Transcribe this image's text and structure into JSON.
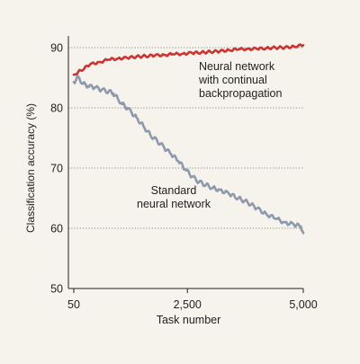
{
  "chart_data": {
    "type": "line",
    "xlabel": "Task number",
    "ylabel": "Classification accuracy (%)",
    "xlim": [
      50,
      5000
    ],
    "ylim": [
      50,
      92
    ],
    "x_ticks": [
      50,
      2500,
      5000
    ],
    "x_tick_labels": [
      "50",
      "2,500",
      "5,000"
    ],
    "y_ticks": [
      50,
      60,
      70,
      80,
      90
    ],
    "y_tick_labels": [
      "50",
      "60",
      "70",
      "80",
      "90"
    ],
    "grid": true,
    "series": [
      {
        "name": "Neural network with continual backpropagation",
        "label_lines": [
          "Neural network",
          "with continual",
          "backpropagation"
        ],
        "color": "#cc3333",
        "x": [
          50,
          200,
          400,
          600,
          800,
          1000,
          1200,
          1400,
          1600,
          1800,
          2000,
          2200,
          2400,
          2600,
          2800,
          3000,
          3200,
          3400,
          3600,
          3800,
          4000,
          4200,
          4400,
          4600,
          4800,
          5000
        ],
        "y": [
          85.5,
          86.2,
          87.2,
          87.6,
          88.0,
          88.2,
          88.3,
          88.5,
          88.6,
          88.7,
          88.8,
          88.9,
          89.0,
          89.1,
          89.2,
          89.3,
          89.4,
          89.6,
          89.7,
          89.8,
          89.8,
          89.9,
          90.0,
          90.0,
          90.2,
          90.4
        ]
      },
      {
        "name": "Standard neural network",
        "label_lines": [
          "Standard",
          "neural network"
        ],
        "color": "#8e99ad",
        "x": [
          50,
          150,
          250,
          350,
          500,
          650,
          800,
          900,
          1000,
          1100,
          1200,
          1300,
          1400,
          1550,
          1700,
          1850,
          2000,
          2150,
          2300,
          2450,
          2600,
          2750,
          2900,
          3050,
          3200,
          3400,
          3600,
          3800,
          4000,
          4200,
          4400,
          4600,
          4800,
          4950,
          5000
        ],
        "y": [
          84.3,
          85.1,
          84.0,
          83.6,
          83.4,
          83.0,
          82.7,
          82.4,
          81.5,
          80.6,
          80.0,
          79.2,
          78.4,
          77.0,
          75.5,
          74.5,
          73.4,
          72.3,
          71.2,
          69.8,
          68.6,
          67.7,
          67.2,
          66.7,
          66.4,
          65.7,
          65.0,
          64.3,
          63.3,
          62.4,
          61.6,
          61.0,
          60.6,
          60.3,
          59.2
        ]
      }
    ]
  }
}
